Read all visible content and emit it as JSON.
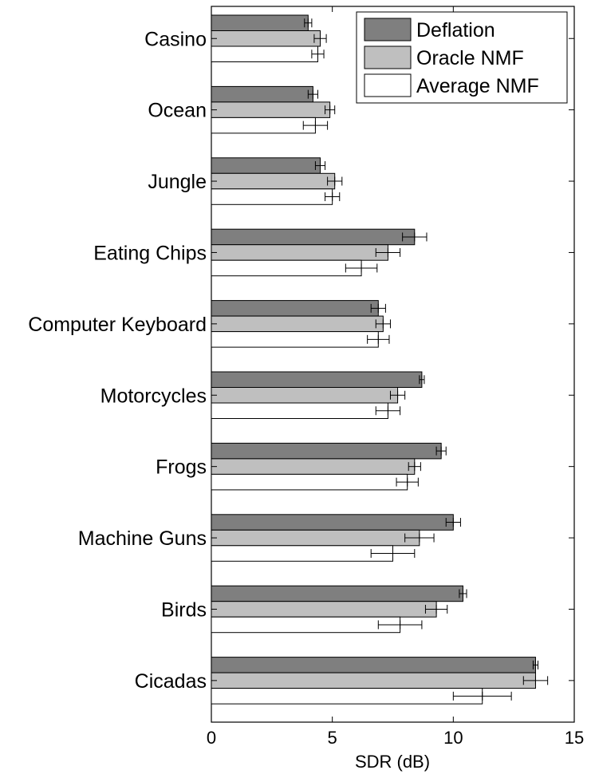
{
  "chart_data": {
    "type": "bar",
    "orientation": "horizontal",
    "title": "",
    "xlabel": "SDR (dB)",
    "ylabel": "",
    "xlim": [
      0,
      15
    ],
    "xticks": [
      0,
      5,
      10,
      15
    ],
    "grid": false,
    "legend_position": "top-right",
    "categories": [
      "Casino",
      "Ocean",
      "Jungle",
      "Eating Chips",
      "Computer Keyboard",
      "Motorcycles",
      "Frogs",
      "Machine Guns",
      "Birds",
      "Cicadas"
    ],
    "series": [
      {
        "name": "Deflation",
        "color": "#7f7f7f",
        "values": [
          4.0,
          4.2,
          4.5,
          8.4,
          6.9,
          8.7,
          9.5,
          10.0,
          10.4,
          13.4
        ],
        "errors": [
          0.15,
          0.2,
          0.2,
          0.5,
          0.3,
          0.1,
          0.2,
          0.3,
          0.15,
          0.1
        ]
      },
      {
        "name": "Oracle NMF",
        "color": "#bfbfbf",
        "values": [
          4.5,
          4.9,
          5.1,
          7.3,
          7.1,
          7.7,
          8.4,
          8.6,
          9.3,
          13.4
        ],
        "errors": [
          0.25,
          0.2,
          0.3,
          0.5,
          0.3,
          0.3,
          0.25,
          0.6,
          0.45,
          0.5
        ]
      },
      {
        "name": "Average NMF",
        "color": "#ffffff",
        "values": [
          4.4,
          4.3,
          5.0,
          6.2,
          6.9,
          7.3,
          8.1,
          7.5,
          7.8,
          11.2
        ],
        "errors": [
          0.25,
          0.5,
          0.3,
          0.65,
          0.45,
          0.5,
          0.45,
          0.9,
          0.9,
          1.2
        ]
      }
    ]
  }
}
